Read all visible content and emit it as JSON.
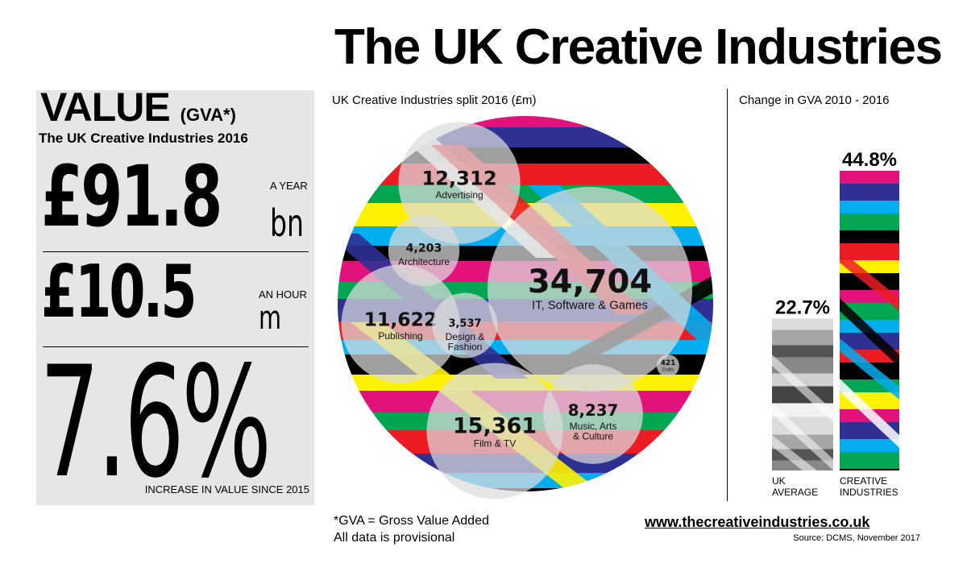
{
  "title": "The UK Creative Industries",
  "value_panel": {
    "heading": "VALUE",
    "heading_suffix": "(GVA*)",
    "subtitle": "The UK Creative Industries 2016",
    "per_year": {
      "value": "£91.8",
      "unit": "bn",
      "label": "A YEAR"
    },
    "per_hour": {
      "value": "£10.5",
      "unit": "m",
      "label": "AN HOUR"
    },
    "increase": {
      "value": "7.6%",
      "label": "INCREASE IN VALUE SINCE 2015"
    }
  },
  "footer": {
    "gva_note": "*GVA = Gross Value Added",
    "provisional": "All data is provisional",
    "website": "www.thecreativeindustries.co.uk",
    "source": "Source: DCMS, November 2017"
  },
  "colors": {
    "stripes": [
      "#e2127a",
      "#2e3192",
      "#000000",
      "#ed1c24",
      "#00a651",
      "#fff200",
      "#00aeef",
      "#ffffff"
    ],
    "grey_stripes": [
      "#dcdcdc",
      "#a6a6a6",
      "#555555",
      "#888888",
      "#cfcfcf",
      "#444444",
      "#f2f2f2"
    ]
  },
  "chart_data": [
    {
      "type": "bubble",
      "title": "UK Creative Industries split 2016 (£m)",
      "categories": [
        "Advertising",
        "Architecture",
        "IT, Software & Games",
        "Publishing",
        "Design & Fashion",
        "Crafts",
        "Film & TV",
        "Music, Arts & Culture"
      ],
      "values": [
        12312,
        4203,
        34704,
        11622,
        3537,
        421,
        15361,
        8237
      ],
      "value_labels": [
        "12,312",
        "4,203",
        "34,704",
        "11,622",
        "3,537",
        "421",
        "15,361",
        "8,237"
      ]
    },
    {
      "type": "bar",
      "title": "Change in GVA 2010 - 2016",
      "categories": [
        "UK AVERAGE",
        "CREATIVE INDUSTRIES"
      ],
      "values": [
        22.7,
        44.8
      ],
      "value_labels": [
        "22.7%",
        "44.8%"
      ],
      "unit": "%"
    }
  ]
}
